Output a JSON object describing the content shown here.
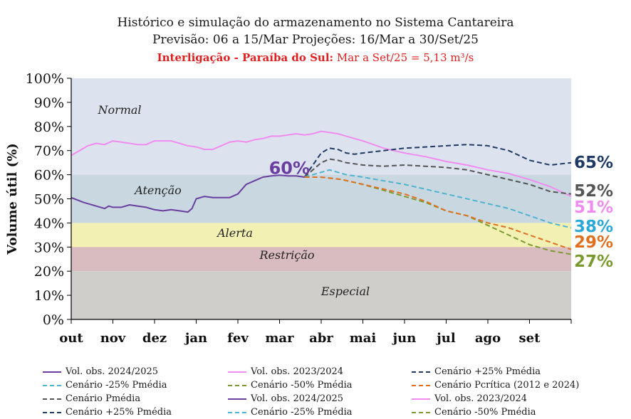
{
  "header": {
    "line1": "Histórico e simulação do armazenamento no Sistema Cantareira",
    "line2": "Previsão: 06 a 15/Mar Projeções: 16/Mar a 30/Set/25",
    "line3_bold": "Interligação - Paraíba do Sul:",
    "line3_rest": " Mar a Set/25 = 5,13 m³/s"
  },
  "chart_data": {
    "type": "line",
    "ylabel": "Volume útil (%)",
    "ylim": [
      0,
      100
    ],
    "y_ticks": [
      "0%",
      "10%",
      "20%",
      "30%",
      "40%",
      "50%",
      "60%",
      "70%",
      "80%",
      "90%",
      "100%"
    ],
    "x_ticks": [
      "out",
      "nov",
      "dez",
      "jan",
      "fev",
      "mar",
      "abr",
      "mai",
      "jun",
      "jul",
      "ago",
      "set"
    ],
    "xlim": [
      0,
      12
    ],
    "zones": [
      {
        "label": "Normal",
        "from": 60,
        "to": 100,
        "color": "#dde3ee"
      },
      {
        "label": "Atenção",
        "from": 40,
        "to": 60,
        "color": "#c9d8e0"
      },
      {
        "label": "Alerta",
        "from": 30,
        "to": 40,
        "color": "#f3f0b4"
      },
      {
        "label": "Restrição",
        "from": 20,
        "to": 30,
        "color": "#d9bcc0"
      },
      {
        "label": "Especial",
        "from": 0,
        "to": 20,
        "color": "#d0cecb"
      }
    ],
    "annotations": [
      {
        "text": "60%",
        "x": 5.1,
        "y": 60,
        "color": "#6a3ea0"
      }
    ],
    "series": [
      {
        "name": "Vol. obs. 2024/2025",
        "color": "#6a3ea0",
        "dashed": false,
        "x": [
          0,
          0.3,
          0.6,
          0.8,
          0.9,
          1.0,
          1.2,
          1.4,
          1.6,
          1.8,
          2.0,
          2.2,
          2.4,
          2.6,
          2.8,
          2.9,
          3.0,
          3.2,
          3.4,
          3.6,
          3.8,
          4.0,
          4.2,
          4.4,
          4.6,
          4.8,
          5.0,
          5.2,
          5.4,
          5.6
        ],
        "y": [
          50.5,
          48.5,
          47,
          46,
          47,
          46.5,
          46.5,
          47.5,
          47,
          46.5,
          45.5,
          45,
          45.5,
          45,
          44.5,
          46,
          50,
          51,
          50.5,
          50.5,
          50.5,
          52,
          56,
          57.5,
          59,
          59.5,
          59.8,
          59.5,
          59.5,
          59
        ]
      },
      {
        "name": "Vol. obs. 2023/2024",
        "color": "#f08cf0",
        "dashed": false,
        "x": [
          0,
          0.2,
          0.4,
          0.6,
          0.8,
          1.0,
          1.2,
          1.4,
          1.6,
          1.8,
          2.0,
          2.2,
          2.4,
          2.6,
          2.8,
          3.0,
          3.2,
          3.4,
          3.6,
          3.8,
          4.0,
          4.2,
          4.4,
          4.6,
          4.8,
          5.0,
          5.2,
          5.4,
          5.6,
          5.8,
          6.0,
          6.2,
          6.4,
          6.6,
          6.8,
          7.0,
          7.5,
          8.0,
          8.5,
          9.0,
          9.5,
          10.0,
          10.5,
          11.0,
          11.5,
          12.0
        ],
        "y": [
          68,
          70,
          72,
          73,
          72.5,
          74,
          73.5,
          73,
          72.5,
          72.5,
          74,
          74,
          74,
          73,
          72,
          71.5,
          70.5,
          70.5,
          72,
          73.5,
          74,
          73.5,
          74.5,
          75,
          76,
          76,
          76.5,
          77,
          76.5,
          77,
          78,
          77.5,
          77,
          76,
          75,
          74,
          71,
          69,
          67.5,
          65.5,
          64,
          62,
          60.5,
          58,
          55,
          51
        ]
      },
      {
        "name": "Cenário +25% Pmédia",
        "color": "#1f3a64",
        "dashed": true,
        "x": [
          5.6,
          5.8,
          6.0,
          6.2,
          6.4,
          6.6,
          6.8,
          7.0,
          7.5,
          8.0,
          8.5,
          9.0,
          9.5,
          10.0,
          10.5,
          11.0,
          11.5,
          12.0
        ],
        "y": [
          59,
          64,
          69,
          71,
          70.5,
          69,
          68.5,
          69,
          70,
          71,
          71.5,
          72,
          72.5,
          72,
          70,
          66,
          64,
          65
        ]
      },
      {
        "name": "Cenário Pmédia",
        "color": "#555555",
        "dashed": true,
        "x": [
          5.6,
          5.8,
          6.0,
          6.2,
          6.4,
          6.6,
          6.8,
          7.0,
          7.5,
          8.0,
          8.5,
          9.0,
          9.5,
          10.0,
          10.5,
          11.0,
          11.5,
          12.0
        ],
        "y": [
          59,
          62,
          65,
          66.5,
          66,
          65,
          64.5,
          64,
          63.5,
          64,
          63.5,
          63,
          62,
          60,
          58,
          56,
          53,
          52
        ]
      },
      {
        "name": "Cenário -25% Pmédia",
        "color": "#4fb3d0",
        "dashed": true,
        "x": [
          5.6,
          5.8,
          6.0,
          6.2,
          6.4,
          6.6,
          6.8,
          7.0,
          7.5,
          8.0,
          8.5,
          9.0,
          9.5,
          10.0,
          10.5,
          11.0,
          11.5,
          12.0
        ],
        "y": [
          59,
          60,
          61,
          62,
          61,
          60,
          59.5,
          59,
          57.5,
          56,
          54,
          52,
          50,
          48,
          46,
          43,
          40,
          38
        ]
      },
      {
        "name": "Cenário -50% Pmédia",
        "color": "#7a9a30",
        "dashed": true,
        "x": [
          5.6,
          6.0,
          6.5,
          7.0,
          7.5,
          8.0,
          8.5,
          9.0,
          9.5,
          10.0,
          10.5,
          11.0,
          11.5,
          12.0
        ],
        "y": [
          59,
          59,
          58,
          56,
          53.5,
          51,
          48.5,
          45,
          43,
          39,
          35,
          31,
          28.5,
          27
        ]
      },
      {
        "name": "Cenário Pcrítica (2012 e 2024)",
        "color": "#e07020",
        "dashed": true,
        "x": [
          5.6,
          6.0,
          6.5,
          7.0,
          7.5,
          8.0,
          8.5,
          9.0,
          9.5,
          10.0,
          10.5,
          11.0,
          11.5,
          12.0
        ],
        "y": [
          59,
          59,
          58,
          56,
          54,
          52,
          49,
          45,
          43,
          40,
          38,
          35,
          32,
          29
        ]
      }
    ],
    "end_labels": [
      {
        "text": "65%",
        "y": 65,
        "color": "#1f3a64"
      },
      {
        "text": "52%",
        "y": 52,
        "color": "#555555"
      },
      {
        "text": "51%",
        "y": 51,
        "color": "#f08cf0"
      },
      {
        "text": "38%",
        "y": 38,
        "color": "#2aa8d8"
      },
      {
        "text": "29%",
        "y": 29,
        "color": "#e07020"
      },
      {
        "text": "27%",
        "y": 27,
        "color": "#7a9a30"
      }
    ]
  },
  "legend": [
    {
      "label": "Vol. obs. 2024/2025",
      "color": "#6a3ea0",
      "dashed": false
    },
    {
      "label": "Vol. obs. 2023/2024",
      "color": "#f08cf0",
      "dashed": false
    },
    {
      "label": "Cenário +25% Pmédia",
      "color": "#1f3a64",
      "dashed": true
    },
    {
      "label": "Cenário -25% Pmédia",
      "color": "#4fb3d0",
      "dashed": true
    },
    {
      "label": "Cenário -50% Pmédia",
      "color": "#7a9a30",
      "dashed": true
    },
    {
      "label": "Cenário Pcrítica (2012 e 2024)",
      "color": "#e07020",
      "dashed": true
    },
    {
      "label": "Cenário Pmédia",
      "color": "#555555",
      "dashed": true
    },
    {
      "label": "Vol. obs. 2024/2025",
      "color": "#6a3ea0",
      "dashed": false
    },
    {
      "label": "Vol. obs. 2023/2024",
      "color": "#f08cf0",
      "dashed": false
    },
    {
      "label": "Cenário +25% Pmédia",
      "color": "#1f3a64",
      "dashed": true
    },
    {
      "label": "Cenário -25% Pmédia",
      "color": "#4fb3d0",
      "dashed": true
    },
    {
      "label": "Cenário -50% Pmédia",
      "color": "#7a9a30",
      "dashed": true
    }
  ]
}
